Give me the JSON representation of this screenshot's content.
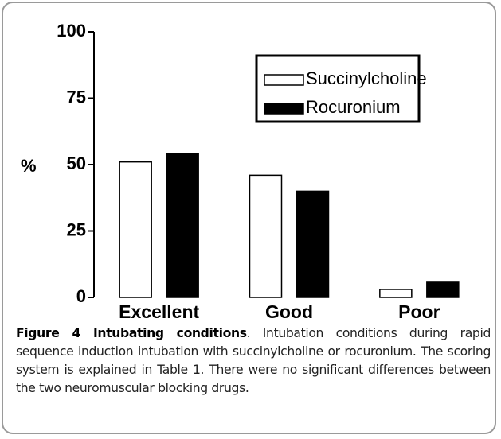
{
  "chart_data": {
    "type": "bar",
    "y_label": "%",
    "categories": [
      "Excellent",
      "Good",
      "Poor"
    ],
    "series": [
      {
        "name": "Succinylcholine",
        "color": "#ffffff",
        "values": [
          51,
          46,
          3
        ]
      },
      {
        "name": "Rocuronium",
        "color": "#000000",
        "values": [
          54,
          40,
          6
        ]
      }
    ],
    "ylim": [
      0,
      100
    ],
    "yticks": [
      0,
      25,
      50,
      75,
      100
    ],
    "grid": false,
    "legend": "top-right"
  },
  "caption": {
    "label": "Figure 4 Intubating conditions",
    "text": ". Intubation conditions during rapid sequence induction intubation with succinylcholine or rocuronium. The scoring system is explained in Table 1. There were no significant differences between the two neuromuscular blocking drugs."
  }
}
